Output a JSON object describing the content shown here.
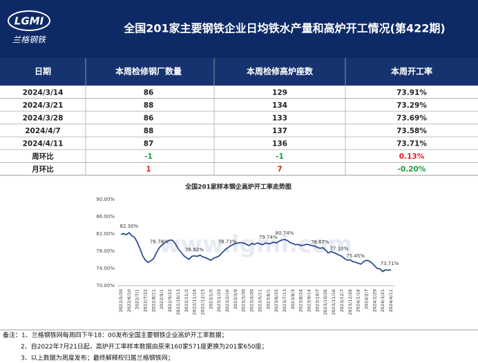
{
  "header": {
    "logo": "LGMI",
    "logo_text": "兰格钢铁",
    "title": "全国201家主要钢铁企业日均铁水产量和高炉开工情况(第422期)"
  },
  "table": {
    "columns": [
      "日期",
      "本周检修钢厂数量",
      "本周检修高炉座数",
      "本周开工率"
    ],
    "rows": [
      {
        "cells": [
          "2024/3/14",
          "86",
          "129",
          "73.91%"
        ]
      },
      {
        "cells": [
          "2024/3/21",
          "88",
          "134",
          "73.29%"
        ]
      },
      {
        "cells": [
          "2024/3/28",
          "86",
          "133",
          "73.69%"
        ]
      },
      {
        "cells": [
          "2024/4/7",
          "88",
          "137",
          "73.58%"
        ]
      },
      {
        "cells": [
          "2024/4/11",
          "87",
          "136",
          "73.71%"
        ]
      },
      {
        "cells": [
          "周环比",
          "-1",
          "-1",
          "0.13%"
        ],
        "colors": [
          "#222222",
          "#1a9a3a",
          "#1a9a3a",
          "#e02020"
        ]
      },
      {
        "cells": [
          "月环比",
          "1",
          "7",
          "-0.20%"
        ],
        "colors": [
          "#222222",
          "#e02020",
          "#e02020",
          "#1a9a3a"
        ]
      }
    ]
  },
  "chart_data": {
    "type": "line",
    "title": "全国201家样本钢企高炉开工率走势图",
    "watermark": "www.lgmi.com",
    "color": "#2f4b8c",
    "categories": [
      "2022/5/20",
      null,
      null,
      "2022/6/10",
      null,
      null,
      "2022/7/1",
      null,
      null,
      "2022/7/22",
      null,
      null,
      "2022/8/11",
      null,
      null,
      "2022/9/1",
      null,
      null,
      "2022/9/22",
      null,
      null,
      "2022/10/13",
      null,
      null,
      "2022/11/3",
      null,
      null,
      "2022/11/24",
      null,
      null,
      "2022/12/15",
      null,
      null,
      "2023/1/5",
      null,
      null,
      "2023/1/29",
      null,
      null,
      "2023/2/16",
      null,
      null,
      "2023/3/9",
      null,
      null,
      "2023/3/30",
      null,
      null,
      "2023/4/20",
      null,
      null,
      "2023/5/11",
      null,
      null,
      "2023/6/1",
      null,
      null,
      "2023/6/25",
      null,
      null,
      "2023/7/13",
      null,
      null,
      "2023/8/3",
      null,
      null,
      "2023/8/24",
      null,
      null,
      "2023/9/14",
      null,
      null,
      "2023/10/7",
      null,
      null,
      "2023/10/26",
      null,
      null,
      "2023/11/16",
      null,
      null,
      "2023/12/7",
      null,
      null,
      "2023/12/28",
      null,
      null,
      "2024/1/18",
      null,
      null,
      "2024/2/7",
      null,
      null,
      "2024/2/29",
      null,
      null,
      "2024/3/21",
      null,
      null,
      "2024/4/11"
    ],
    "values": [
      81.9,
      82.1,
      81.8,
      82.3,
      81.6,
      81.2,
      80.1,
      78.6,
      76.9,
      75.9,
      75.4,
      75.8,
      76.3,
      77.6,
      78.74,
      79.4,
      79.9,
      80.3,
      80.6,
      80.5,
      79.7,
      78.6,
      77.8,
      77.0,
      76.5,
      76.1,
      76.8,
      76.92,
      76.8,
      77.1,
      76.7,
      76.5,
      76.2,
      75.9,
      76.4,
      76.6,
      76.9,
      77.6,
      78.2,
      78.73,
      79.2,
      79.5,
      79.8,
      79.9,
      80.0,
      79.9,
      79.6,
      79.3,
      79.8,
      79.6,
      79.9,
      79.7,
      79.5,
      79.9,
      79.74,
      79.8,
      80.1,
      79.9,
      80.3,
      80.6,
      80.74,
      80.5,
      80.0,
      79.8,
      79.5,
      79.6,
      79.3,
      79.4,
      79.6,
      79.5,
      79.3,
      79.2,
      78.9,
      78.67,
      78.8,
      78.3,
      77.6,
      77.9,
      77.7,
      77.4,
      77.1,
      76.8,
      76.3,
      75.9,
      76.0,
      75.6,
      75.45,
      75.2,
      75.0,
      75.6,
      75.9,
      75.7,
      75.3,
      74.6,
      74.0,
      73.91,
      73.29,
      73.69,
      73.58,
      73.71
    ],
    "value_labels": [
      null,
      null,
      null,
      "82.30%",
      null,
      null,
      null,
      null,
      null,
      null,
      null,
      null,
      null,
      null,
      "78.74%",
      null,
      null,
      null,
      null,
      null,
      null,
      null,
      null,
      null,
      null,
      null,
      null,
      "76.92%",
      null,
      null,
      null,
      null,
      null,
      null,
      null,
      null,
      null,
      null,
      null,
      "78.73%",
      null,
      null,
      null,
      null,
      null,
      null,
      null,
      null,
      null,
      null,
      null,
      null,
      null,
      null,
      "79.74%",
      null,
      null,
      null,
      null,
      null,
      "80.74%",
      null,
      null,
      null,
      null,
      null,
      null,
      null,
      null,
      null,
      null,
      null,
      null,
      "78.67%",
      null,
      null,
      null,
      null,
      null,
      null,
      "77.10%",
      null,
      null,
      null,
      null,
      null,
      "75.45%",
      null,
      null,
      null,
      null,
      null,
      null,
      null,
      null,
      null,
      null,
      null,
      null,
      "73.71%"
    ],
    "ylim": [
      70,
      90
    ],
    "yticks": [
      {
        "value": 70,
        "label": "70.00%"
      },
      {
        "value": 74,
        "label": "74.00%"
      },
      {
        "value": 78,
        "label": "78.00%"
      },
      {
        "value": 82,
        "label": "82.00%"
      },
      {
        "value": 86,
        "label": "86.00%"
      },
      {
        "value": 90,
        "label": "90.00%"
      }
    ],
    "grid": false
  },
  "notes": [
    "备注：1、兰格钢铁网每周四下午18：00发布全国主要钢铁企业高炉开工率数据；",
    "2、自2022年7月21日起，高炉开工率样本数据由原来160家571座更换为201家650座；",
    "3、以上数据为周度发布；最终解释权归属兰格钢铁网；"
  ]
}
